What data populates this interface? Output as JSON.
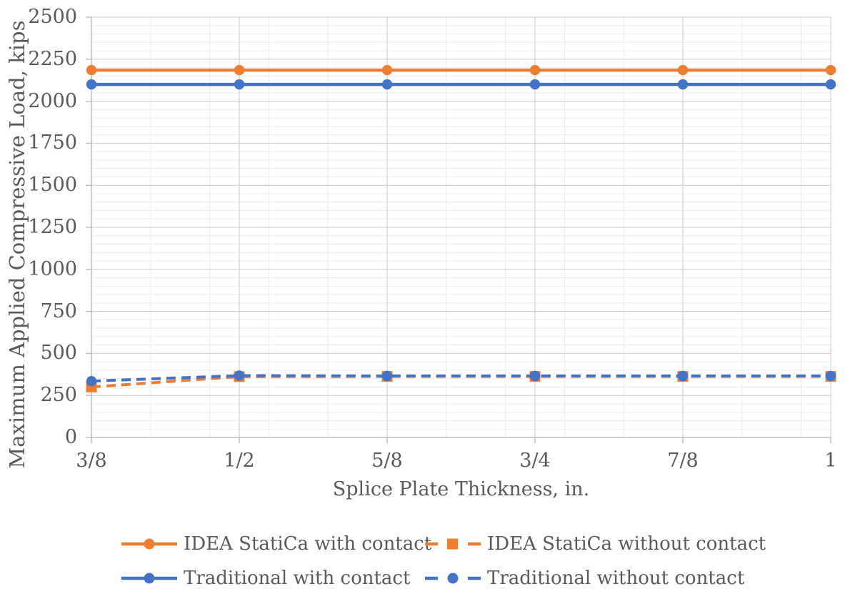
{
  "chart_data": {
    "type": "line",
    "title": "",
    "xlabel": "Splice Plate Thickness, in.",
    "ylabel": "Maximum Applied Compressive Load, kips",
    "categories": [
      "3/8",
      "1/2",
      "5/8",
      "3/4",
      "7/8",
      "1"
    ],
    "x_values": [
      0.375,
      0.5,
      0.625,
      0.75,
      0.875,
      1.0
    ],
    "xlim": [
      0.375,
      1.0
    ],
    "ylim": [
      0,
      2500
    ],
    "y_major_step": 250,
    "y_minor_step": 50,
    "x_major_step": 0.125,
    "x_minor_step": 0.05,
    "y_ticks": [
      2500,
      2250,
      2000,
      1750,
      1500,
      1250,
      1000,
      750,
      500,
      250,
      0
    ],
    "grid": {
      "major": true,
      "minor": true
    },
    "legend_position": "bottom",
    "series": [
      {
        "name": "IDEA StatiCa with contact",
        "color": "#ED7D31",
        "line_style": "solid",
        "marker": "circle",
        "values": [
          2185,
          2185,
          2185,
          2185,
          2185,
          2185
        ]
      },
      {
        "name": "IDEA StatiCa without contact",
        "color": "#ED7D31",
        "line_style": "dashed",
        "marker": "square",
        "values": [
          300,
          362,
          363,
          363,
          363,
          363
        ]
      },
      {
        "name": "Traditional with contact",
        "color": "#4472C4",
        "line_style": "solid",
        "marker": "circle",
        "values": [
          2100,
          2100,
          2100,
          2100,
          2100,
          2100
        ]
      },
      {
        "name": "Traditional without contact",
        "color": "#4472C4",
        "line_style": "dashed",
        "marker": "circle",
        "values": [
          335,
          368,
          366,
          366,
          366,
          366
        ]
      }
    ],
    "colors": {
      "orange": "#ED7D31",
      "blue": "#4472C4",
      "grid_major": "#C9C9C9",
      "grid_minor": "#ECECEC",
      "axis_line": "#BFBFBF",
      "text": "#595959",
      "background": "#FFFFFF"
    }
  }
}
